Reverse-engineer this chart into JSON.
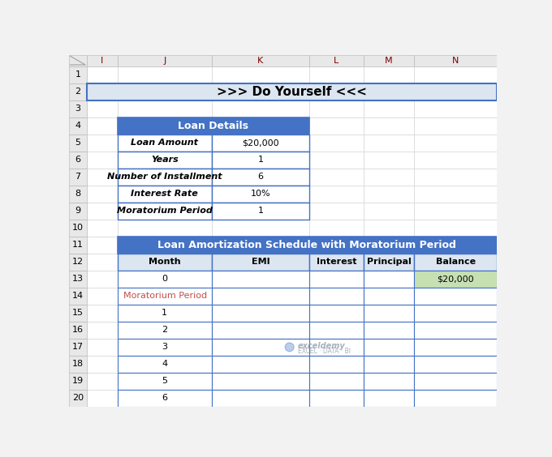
{
  "title_text": ">>> Do Yourself <<<",
  "title_bg": "#dce6f1",
  "title_border": "#4472c4",
  "col_labels": [
    "I",
    "J",
    "K",
    "L",
    "M",
    "N"
  ],
  "loan_details_header": "Loan Details",
  "loan_details_header_bg": "#4472c4",
  "loan_details_header_fg": "#ffffff",
  "loan_details_rows": [
    [
      "Loan Amount",
      "$20,000"
    ],
    [
      "Years",
      "1"
    ],
    [
      "Number of Installment",
      "6"
    ],
    [
      "Interest Rate",
      "10%"
    ],
    [
      "Moratorium Period",
      "1"
    ]
  ],
  "loan_details_bg": "#ffffff",
  "loan_details_border": "#4472c4",
  "schedule_header": "Loan Amortization Schedule with Moratorium Period",
  "schedule_header_bg": "#4472c4",
  "schedule_header_fg": "#ffffff",
  "schedule_col_headers": [
    "Month",
    "EMI",
    "Interest",
    "Principal",
    "Balance"
  ],
  "schedule_col_header_bg": "#dce6f1",
  "schedule_col_header_fg": "#000000",
  "schedule_rows": [
    [
      "0",
      "",
      "",
      "",
      "$20,000"
    ],
    [
      "Moratorium Period",
      "",
      "",
      "",
      ""
    ],
    [
      "1",
      "",
      "",
      "",
      ""
    ],
    [
      "2",
      "",
      "",
      "",
      ""
    ],
    [
      "3",
      "",
      "",
      "",
      ""
    ],
    [
      "4",
      "",
      "",
      "",
      ""
    ],
    [
      "5",
      "",
      "",
      "",
      ""
    ],
    [
      "6",
      "",
      "",
      "",
      ""
    ]
  ],
  "balance_cell_bg": "#c6e0b4",
  "moratorium_text_color": "#c0504d",
  "grid_color": "#4472c4",
  "cell_border_color": "#4472c4",
  "thin_border_color": "#bfbfbf",
  "bg_color": "#ffffff",
  "sheet_bg": "#f2f2f2",
  "row_header_bg": "#e8e8e8",
  "col_header_bg": "#e8e8e8",
  "watermark_text": "exceldemy",
  "watermark_subtext": "EXCEL · DATA · BI"
}
